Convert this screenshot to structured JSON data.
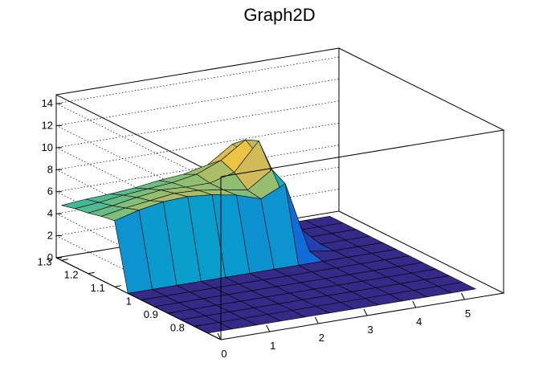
{
  "chart_data": {
    "type": "surface",
    "title": "Graph2D",
    "xlabel": "",
    "ylabel": "",
    "zlabel": "",
    "xlim": [
      0,
      5.8
    ],
    "ylim": [
      0.7,
      1.32
    ],
    "zlim": [
      0,
      14.8
    ],
    "x_ticks": [
      "0",
      "1",
      "2",
      "3",
      "4",
      "5"
    ],
    "y_ticks": [
      "0.8",
      "0.9",
      "1",
      "1.1",
      "1.2",
      "1.3"
    ],
    "z_ticks": [
      "0",
      "2",
      "4",
      "6",
      "8",
      "10",
      "12",
      "14"
    ],
    "grid": true,
    "palette": "kBird",
    "colors": [
      "#352a87",
      "#0f5cdd",
      "#1481d6",
      "#06a4ca",
      "#2eb7a4",
      "#87bf77",
      "#d1bb59",
      "#fec832",
      "#f9fb0e"
    ],
    "x": [
      0,
      0.5,
      1.0,
      1.5,
      2.0,
      2.5,
      3.0,
      3.5,
      4.0,
      4.5,
      5.0,
      5.5
    ],
    "y": [
      0.75,
      0.8,
      0.85,
      0.9,
      0.95,
      1.0,
      1.05,
      1.1,
      1.15,
      1.2,
      1.25,
      1.3
    ],
    "z_description": "rows follow y (0.75 to 1.3), columns follow x (0 to 5.5)",
    "z": [
      [
        0,
        0,
        0,
        0,
        0,
        0,
        0,
        0,
        0,
        0,
        0,
        0
      ],
      [
        0,
        0,
        0,
        0,
        0,
        0,
        0,
        0,
        0,
        0,
        0,
        0
      ],
      [
        0,
        0,
        0,
        0,
        0,
        0,
        0,
        0,
        0,
        0,
        0,
        0
      ],
      [
        0,
        0,
        0,
        0,
        0,
        0,
        0,
        0,
        0,
        0,
        0,
        0
      ],
      [
        0,
        0,
        0,
        0,
        0,
        0,
        0,
        0,
        0,
        0,
        0,
        0
      ],
      [
        0,
        0,
        0,
        0,
        0,
        0,
        0,
        0,
        0,
        0,
        0,
        0
      ],
      [
        0,
        0,
        0,
        0,
        0,
        0,
        0,
        0,
        0,
        0,
        0,
        0
      ],
      [
        6.0,
        6.6,
        7.0,
        7.1,
        6.9,
        6.5,
        5.8,
        6.8,
        0.3,
        0,
        0,
        0
      ],
      [
        5.8,
        6.2,
        6.5,
        6.8,
        6.7,
        6.4,
        6.0,
        7.5,
        2.0,
        0,
        0,
        0
      ],
      [
        5.5,
        5.8,
        6.2,
        6.5,
        6.4,
        6.4,
        7.0,
        9.5,
        4.0,
        0,
        0,
        0
      ],
      [
        5.3,
        5.5,
        5.8,
        6.0,
        6.2,
        6.6,
        7.5,
        9.0,
        6.0,
        0,
        0,
        0
      ],
      [
        5.0,
        5.2,
        5.3,
        5.5,
        5.8,
        6.0,
        6.5,
        8.0,
        6.5,
        0,
        0,
        0
      ]
    ]
  }
}
